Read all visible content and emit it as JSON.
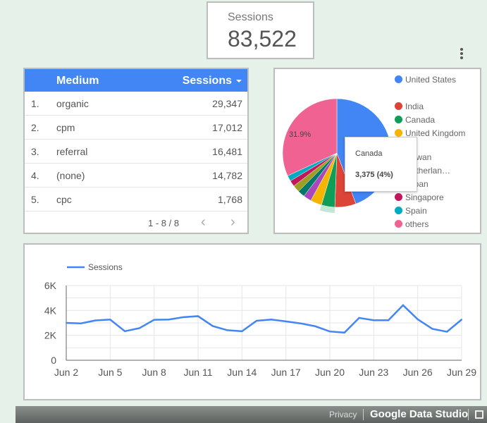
{
  "scorecard": {
    "label": "Sessions",
    "value": "83,522"
  },
  "table": {
    "headers": [
      "Medium",
      "Sessions"
    ],
    "rows": [
      {
        "n": "1.",
        "medium": "organic",
        "sessions": "29,347"
      },
      {
        "n": "2.",
        "medium": "cpm",
        "sessions": "17,012"
      },
      {
        "n": "3.",
        "medium": "referral",
        "sessions": "16,481"
      },
      {
        "n": "4.",
        "medium": "(none)",
        "sessions": "14,782"
      },
      {
        "n": "5.",
        "medium": "cpc",
        "sessions": "1,768"
      }
    ],
    "pager": "1 - 8 / 8"
  },
  "pie": {
    "label_others": "31.9%",
    "slices": [
      {
        "name": "United States",
        "pct": 44.3,
        "color": "#4285f4"
      },
      {
        "name": "India",
        "pct": 6.3,
        "color": "#db4437"
      },
      {
        "name": "Canada",
        "pct": 4.0,
        "color": "#0f9d58"
      },
      {
        "name": "United Kingdom",
        "pct": 3.4,
        "color": "#f4b400"
      },
      {
        "name": "Taiwan",
        "pct": 2.4,
        "color": "#ab47bc"
      },
      {
        "name": "Netherlan…",
        "pct": 2.1,
        "color": "#00796b"
      },
      {
        "name": "Japan",
        "pct": 2.1,
        "color": "#9e9d24"
      },
      {
        "name": "Singapore",
        "pct": 1.8,
        "color": "#c2185b"
      },
      {
        "name": "Spain",
        "pct": 1.7,
        "color": "#00acc1"
      },
      {
        "name": "others",
        "pct": 31.9,
        "color": "#f06292"
      }
    ],
    "tooltip": {
      "name": "Canada",
      "value": "3,375 (4%)"
    }
  },
  "chart_data": {
    "type": "line",
    "legend": "Sessions",
    "legend_position": "top-left",
    "grid": true,
    "x": [
      "Jun 2",
      "Jun 3",
      "Jun 4",
      "Jun 5",
      "Jun 6",
      "Jun 7",
      "Jun 8",
      "Jun 9",
      "Jun 10",
      "Jun 11",
      "Jun 12",
      "Jun 13",
      "Jun 14",
      "Jun 15",
      "Jun 16",
      "Jun 17",
      "Jun 18",
      "Jun 19",
      "Jun 20",
      "Jun 21",
      "Jun 22",
      "Jun 23",
      "Jun 24",
      "Jun 25",
      "Jun 26",
      "Jun 27",
      "Jun 28",
      "Jun 29"
    ],
    "xticks": [
      "Jun 2",
      "Jun 5",
      "Jun 8",
      "Jun 11",
      "Jun 14",
      "Jun 17",
      "Jun 20",
      "Jun 23",
      "Jun 26",
      "Jun 29"
    ],
    "yticks": [
      "0",
      "2K",
      "4K",
      "6K"
    ],
    "ylim": [
      0,
      6000
    ],
    "color": "#4285f4",
    "series": [
      {
        "name": "Sessions",
        "values": [
          3000,
          2960,
          3200,
          3270,
          2330,
          2580,
          3250,
          3270,
          3460,
          3540,
          2750,
          2410,
          2330,
          3170,
          3270,
          3120,
          2960,
          2730,
          2310,
          2220,
          3400,
          3210,
          3210,
          4420,
          3290,
          2520,
          2290,
          3270
        ]
      }
    ]
  },
  "footer": {
    "privacy": "Privacy",
    "brand": "Google Data Studio"
  }
}
